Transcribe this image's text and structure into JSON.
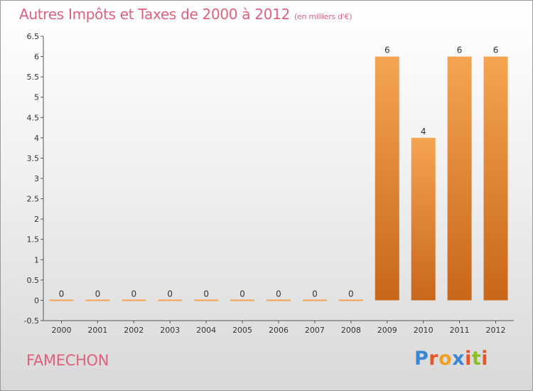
{
  "header": {
    "title": "Autres Impôts et Taxes de 2000 à 2012",
    "unit": "(en milliers d'€)"
  },
  "commune": "FAMECHON",
  "logo": {
    "text": "Proxiti",
    "letter_colors": [
      "#3a86d0",
      "#e3572a",
      "#f0a020",
      "#3a86d0",
      "#e3572a",
      "#8cbf26",
      "#e3572a"
    ]
  },
  "colors": {
    "title": "#e0607e",
    "bar_top": "#f5a552",
    "bar_bottom": "#c8661a",
    "axis": "#555555",
    "grid": "#777777"
  },
  "chart_data": {
    "type": "bar",
    "categories": [
      "2000",
      "2001",
      "2002",
      "2003",
      "2004",
      "2005",
      "2006",
      "2007",
      "2008",
      "2009",
      "2010",
      "2011",
      "2012"
    ],
    "values": [
      0,
      0,
      0,
      0,
      0,
      0,
      0,
      0,
      0,
      6,
      4,
      6,
      6
    ],
    "data_labels": [
      "0",
      "0",
      "0",
      "0",
      "0",
      "0",
      "0",
      "0",
      "0",
      "6",
      "4",
      "6",
      "6"
    ],
    "y_ticks": [
      "-0.5",
      "0",
      "0.5",
      "1",
      "1.5",
      "2",
      "2.5",
      "3",
      "3.5",
      "4",
      "4.5",
      "5",
      "5.5",
      "6",
      "6.5"
    ],
    "ylim": [
      -0.5,
      6.5
    ],
    "title": "Autres Impôts et Taxes de 2000 à 2012",
    "xlabel": "",
    "ylabel": "",
    "grid": false,
    "legend": "none"
  }
}
